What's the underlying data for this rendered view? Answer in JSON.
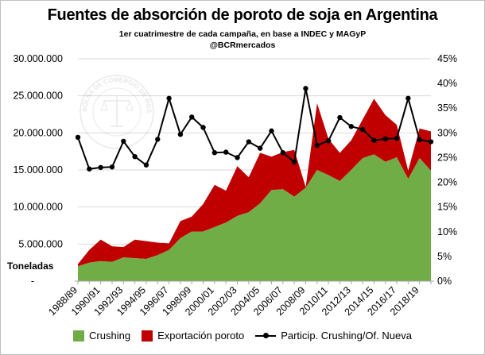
{
  "chart_data": {
    "type": "area",
    "title": "Fuentes de absorción de poroto de soja en Argentina",
    "subtitle": "1er cuatrimestre de cada campaña, en base a INDEC y MAGyP",
    "source": "@BCRmercados",
    "ylabel": "Toneladas",
    "ylim": [
      0,
      30000000
    ],
    "y2lim": [
      0,
      0.45
    ],
    "yticks": [
      "-",
      "5.000.000",
      "10.000.000",
      "15.000.000",
      "20.000.000",
      "25.000.000",
      "30.000.000"
    ],
    "y2ticks": [
      "0%",
      "5%",
      "10%",
      "15%",
      "20%",
      "25%",
      "30%",
      "35%",
      "40%",
      "45%"
    ],
    "categories": [
      "1988/89",
      "1989/90",
      "1990/91",
      "1991/92",
      "1992/93",
      "1993/94",
      "1994/95",
      "1995/96",
      "1996/97",
      "1997/98",
      "1998/99",
      "1999/00",
      "2000/01",
      "2001/02",
      "2002/03",
      "2003/04",
      "2004/05",
      "2005/06",
      "2006/07",
      "2007/08",
      "2008/09",
      "2009/10",
      "2010/11",
      "2011/12",
      "2012/13",
      "2013/14",
      "2014/15",
      "2015/16",
      "2016/17",
      "2017/18",
      "2018/19",
      "2019/20"
    ],
    "tick_labels": [
      "1988/89",
      "1990/91",
      "1992/93",
      "1994/95",
      "1996/97",
      "1998/99",
      "2000/01",
      "2002/03",
      "2004/05",
      "2006/07",
      "2008/09",
      "2010/11",
      "2012/13",
      "2014/15",
      "2016/17",
      "2018/19"
    ],
    "series": [
      {
        "name": "Crushing",
        "type": "area",
        "axis": "left",
        "color": "#70ad47",
        "values": [
          2000000,
          2500000,
          2700000,
          2600000,
          3200000,
          3100000,
          3000000,
          3500000,
          4200000,
          5800000,
          6700000,
          6700000,
          7300000,
          7900000,
          8800000,
          9300000,
          10500000,
          12300000,
          12400000,
          11400000,
          12600000,
          15000000,
          14300000,
          13500000,
          15000000,
          16600000,
          17100000,
          16100000,
          16700000,
          13800000,
          16600000,
          14900000
        ]
      },
      {
        "name": "Exportación poroto",
        "type": "area",
        "axis": "left",
        "color": "#c00000",
        "values": [
          300000,
          1700000,
          2900000,
          2100000,
          1400000,
          2500000,
          2400000,
          1700000,
          900000,
          2300000,
          2000000,
          3700000,
          5700000,
          4300000,
          6700000,
          4700000,
          6800000,
          4500000,
          5000000,
          6300000,
          100000,
          9000000,
          4900000,
          3800000,
          4000000,
          5200000,
          7500000,
          6300000,
          4400000,
          1100000,
          4000000,
          5300000
        ]
      },
      {
        "name": "Particip. Crushing/Of. Nueva",
        "type": "line",
        "axis": "right",
        "color": "#000000",
        "values": [
          0.291,
          0.227,
          0.23,
          0.231,
          0.283,
          0.252,
          0.235,
          0.287,
          0.37,
          0.297,
          0.332,
          0.311,
          0.26,
          0.261,
          0.25,
          0.282,
          0.269,
          0.304,
          0.26,
          0.241,
          0.39,
          0.275,
          0.284,
          0.331,
          0.313,
          0.307,
          0.285,
          0.288,
          0.289,
          0.37,
          0.286,
          0.282
        ]
      }
    ],
    "grid": "horizontal",
    "legend_position": "bottom"
  },
  "watermark": "BOLSA DE COMERCIO DE ROSARIO"
}
